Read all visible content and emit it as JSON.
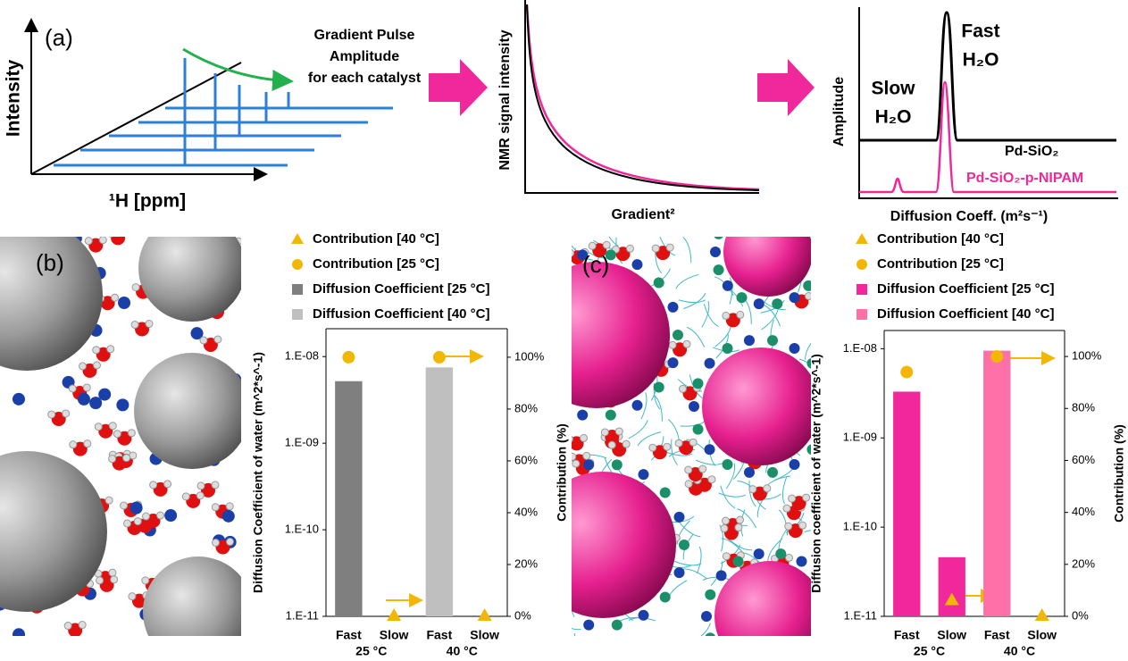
{
  "panel_a": {
    "label": "(a)",
    "y_axis": "Intensity",
    "x_axis": "¹H [ppm]",
    "annotation": [
      "Gradient Pulse",
      "Amplitude",
      "for each catalyst"
    ]
  },
  "decay_plot": {
    "y_axis": "NMR signal intensity",
    "x_axis": "Gradient²"
  },
  "distribution_plot": {
    "y_axis": "Amplitude",
    "x_axis": "Diffusion Coeff. (m²s⁻¹)",
    "slow_label": [
      "Slow",
      "H₂O"
    ],
    "fast_label": [
      "Fast",
      "H₂O"
    ],
    "series": [
      "Pd-SiO₂",
      "Pd-SiO₂-p-NIPAM"
    ]
  },
  "panel_b": {
    "label": "(b)"
  },
  "panel_c": {
    "label": "(c)"
  },
  "chart_data": [
    {
      "type": "bar",
      "log_y": true,
      "y_label": "Diffusion Coefficient of water (m^2*s^-1)",
      "y2_label": "Contribution (%)",
      "categories": [
        "Fast",
        "Slow",
        "Fast",
        "Slow"
      ],
      "groups": [
        "25 °C",
        "40 °C"
      ],
      "ylim": [
        1e-11,
        2.1e-08
      ],
      "yticks": [
        {
          "value": 1e-11,
          "label": "1.E-11"
        },
        {
          "value": 1e-10,
          "label": "1.E-10"
        },
        {
          "value": 1e-09,
          "label": "1.E-09"
        },
        {
          "value": 1e-08,
          "label": "1.E-08"
        }
      ],
      "y2lim": [
        0,
        111
      ],
      "y2ticks": [
        {
          "value": 0,
          "label": "0%"
        },
        {
          "value": 20,
          "label": "20%"
        },
        {
          "value": 40,
          "label": "40%"
        },
        {
          "value": 60,
          "label": "60%"
        },
        {
          "value": 80,
          "label": "80%"
        },
        {
          "value": 100,
          "label": "100%"
        }
      ],
      "series": [
        {
          "name": "Contribution [40 °C]",
          "color": "#f2b705",
          "marker": "triangle",
          "axis": "y2",
          "values": [
            null,
            0,
            null,
            0
          ]
        },
        {
          "name": "Contribution [25 °C]",
          "color": "#f2b705",
          "marker": "circle",
          "axis": "y2",
          "values": [
            100,
            null,
            100,
            null
          ]
        },
        {
          "name": "Diffusion Coefficient [25 °C]",
          "color": "#7f7f7f",
          "values": [
            5.2e-09,
            null,
            null,
            null
          ]
        },
        {
          "name": "Diffusion Coefficient [40 °C]",
          "color": "#bfbfbf",
          "values": [
            null,
            null,
            7.5e-09,
            null
          ]
        }
      ]
    },
    {
      "type": "bar",
      "log_y": true,
      "y_label": "Diffusion coefficient of water (m^2*s^-1)",
      "y2_label": "Contribution (%)",
      "categories": [
        "Fast",
        "Slow",
        "Fast",
        "Slow"
      ],
      "groups": [
        "25 °C",
        "40 °C"
      ],
      "ylim": [
        1e-11,
        1.6e-08
      ],
      "yticks": [
        {
          "value": 1e-11,
          "label": "1.E-11"
        },
        {
          "value": 1e-10,
          "label": "1.E-10"
        },
        {
          "value": 1e-09,
          "label": "1.E-09"
        },
        {
          "value": 1e-08,
          "label": "1.E-08"
        }
      ],
      "y2lim": [
        0,
        110
      ],
      "y2ticks": [
        {
          "value": 0,
          "label": "0%"
        },
        {
          "value": 20,
          "label": "20%"
        },
        {
          "value": 40,
          "label": "40%"
        },
        {
          "value": 60,
          "label": "60%"
        },
        {
          "value": 80,
          "label": "80%"
        },
        {
          "value": 100,
          "label": "100%"
        }
      ],
      "series": [
        {
          "name": "Contribution [40 °C]",
          "color": "#f2b705",
          "marker": "triangle",
          "axis": "y2",
          "values": [
            null,
            6,
            null,
            0
          ]
        },
        {
          "name": "Contribution [25 °C]",
          "color": "#f2b705",
          "marker": "circle",
          "axis": "y2",
          "values": [
            94,
            null,
            100,
            null
          ]
        },
        {
          "name": "Diffusion Coefficient [25 °C]",
          "color": "#f0289c",
          "values": [
            3.3e-09,
            4.6e-11,
            null,
            null
          ]
        },
        {
          "name": "Diffusion Coefficient [40 °C]",
          "color": "#ff6fa8",
          "values": [
            null,
            null,
            9.5e-09,
            null
          ]
        }
      ]
    }
  ]
}
